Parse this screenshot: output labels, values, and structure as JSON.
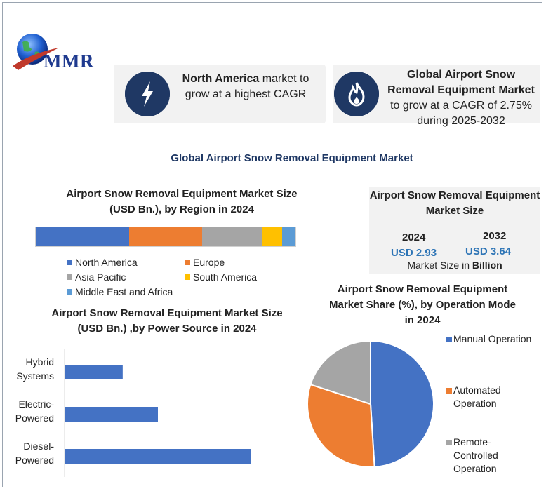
{
  "brand": {
    "logo_text": "MMR"
  },
  "highlights": [
    {
      "bold": "North America",
      "text": " market to grow at a highest CAGR",
      "icon": "lightning-icon"
    },
    {
      "bold": "Global Airport Snow Removal Equipment Market",
      "text": " to grow at a CAGR of 2.75% during 2025-2032",
      "icon": "flame-icon"
    }
  ],
  "main_title": "Global Airport Snow Removal Equipment Market",
  "market_size": {
    "title": "Airport Snow Removal Equipment Market Size",
    "year_a": "2024",
    "value_a": "USD 2.93",
    "year_b": "2032",
    "value_b": "USD 3.64",
    "note_prefix": "Market Size in ",
    "note_bold": "Billion"
  },
  "chart_data": [
    {
      "type": "bar",
      "orientation": "stacked-horizontal",
      "title": "Airport Snow Removal Equipment Market Size (USD Bn.), by Region in 2024",
      "series": [
        {
          "name": "North America",
          "value": 36,
          "color": "#4472c4"
        },
        {
          "name": "Europe",
          "value": 28,
          "color": "#ed7d31"
        },
        {
          "name": "Asia Pacific",
          "value": 23,
          "color": "#a5a5a5"
        },
        {
          "name": "South America",
          "value": 8,
          "color": "#ffc000"
        },
        {
          "name": "Middle East and Africa",
          "value": 5,
          "color": "#5b9bd5"
        }
      ]
    },
    {
      "type": "bar",
      "orientation": "horizontal",
      "title": "Airport Snow Removal Equipment Market Size (USD Bn.) ,by Power Source in 2024",
      "categories": [
        "Hybrid Systems",
        "Electric-Powered",
        "Diesel-Powered"
      ],
      "category_lines": [
        [
          "Hybrid",
          "Systems"
        ],
        [
          "Electric-",
          "Powered"
        ],
        [
          "Diesel-",
          "Powered"
        ]
      ],
      "values": [
        0.31,
        0.5,
        1.0
      ],
      "color": "#4472c4"
    },
    {
      "type": "pie",
      "title": "Airport Snow Removal Equipment Market Share (%), by Operation Mode in 2024",
      "slices": [
        {
          "name": "Manual Operation",
          "lines": [
            "Manual Operation"
          ],
          "value": 49,
          "color": "#4472c4"
        },
        {
          "name": "Automated Operation",
          "lines": [
            "Automated",
            "Operation"
          ],
          "value": 31,
          "color": "#ed7d31"
        },
        {
          "name": "Remote-Controlled Operation",
          "lines": [
            "Remote-",
            "Controlled",
            "Operation"
          ],
          "value": 20,
          "color": "#a5a5a5"
        }
      ]
    }
  ]
}
